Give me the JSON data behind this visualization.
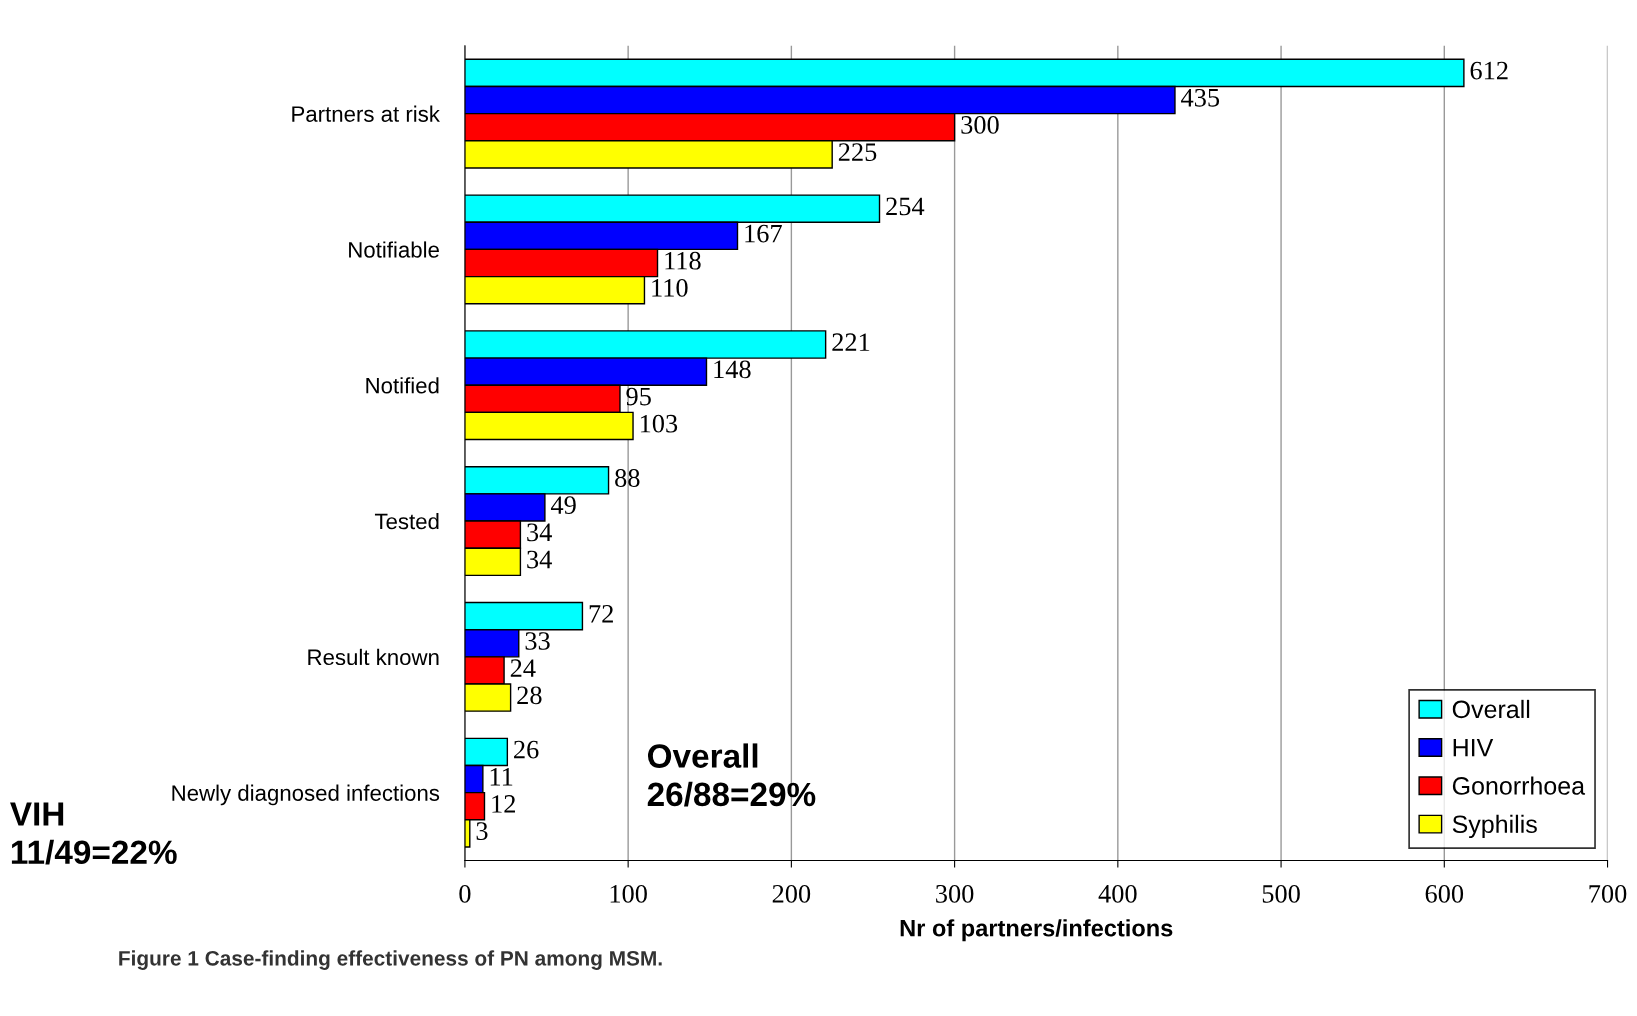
{
  "chart_data": {
    "type": "bar",
    "orientation": "horizontal",
    "categories": [
      "Partners at risk",
      "Notifiable",
      "Notified",
      "Tested",
      "Result known",
      "Newly diagnosed infections"
    ],
    "series": [
      {
        "name": "Overall",
        "color": "#00ffff",
        "values": [
          612,
          254,
          221,
          88,
          72,
          26
        ]
      },
      {
        "name": "HIV",
        "color": "#0000ff",
        "values": [
          435,
          167,
          148,
          49,
          33,
          11
        ]
      },
      {
        "name": "Gonorrhoea",
        "color": "#ff0000",
        "values": [
          300,
          118,
          95,
          34,
          24,
          12
        ]
      },
      {
        "name": "Syphilis",
        "color": "#ffff00",
        "values": [
          225,
          110,
          103,
          34,
          28,
          3
        ]
      }
    ],
    "xlabel": "Nr of partners/infections",
    "xlim": [
      0,
      700
    ],
    "xticks": [
      0,
      100,
      200,
      300,
      400,
      500,
      600,
      700
    ],
    "grid": "x",
    "legend": "bottom right",
    "data_labels": true,
    "annotations": [
      "VIH\n11/49=22%",
      "Overall\n26/88=29%",
      "Figure 1 Case-finding effectiveness of PN among MSM."
    ]
  }
}
